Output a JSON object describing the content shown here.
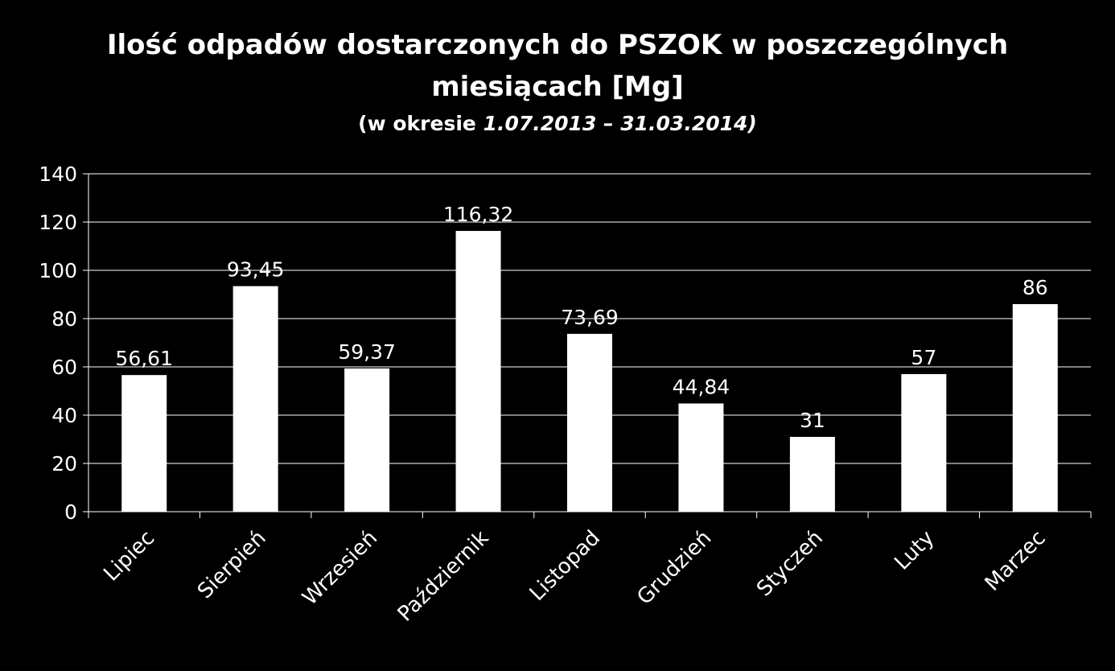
{
  "chart_data": {
    "type": "bar",
    "title_line1": "Ilość odpadów dostarczonych do PSZOK w poszczególnych",
    "title_line2": "miesiącach [Mg]",
    "subtitle_prefix": "(w okresie ",
    "subtitle_dates": "1.07.2013 – 31.03.2014)",
    "categories": [
      "Lipiec",
      "Sierpień",
      "Wrzesień",
      "Październik",
      "Listopad",
      "Grudzień",
      "Styczeń",
      "Luty",
      "Marzec"
    ],
    "values": [
      56.61,
      93.45,
      59.37,
      116.32,
      73.69,
      44.84,
      31,
      57,
      86
    ],
    "value_labels": [
      "56,61",
      "93,45",
      "59,37",
      "116,32",
      "73,69",
      "44,84",
      "31",
      "57",
      "86"
    ],
    "ylim": [
      0,
      140
    ],
    "yticks": [
      0,
      20,
      40,
      60,
      80,
      100,
      120,
      140
    ],
    "ytick_labels": [
      "0",
      "20",
      "40",
      "60",
      "80",
      "100",
      "120",
      "140"
    ],
    "xlabel": "",
    "ylabel": "",
    "grid": true,
    "legend": "none",
    "colors": {
      "background": "#000000",
      "bars": "#ffffff",
      "grid": "#ffffff",
      "text": "#ffffff"
    }
  }
}
